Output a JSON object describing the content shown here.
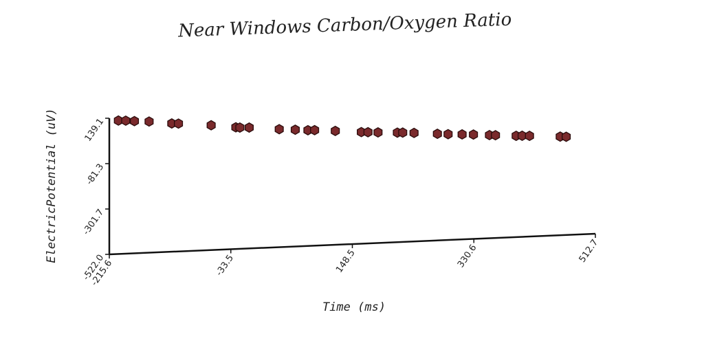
{
  "chart_data": {
    "type": "scatter",
    "title": "Near Windows Carbon/Oxygen Ratio",
    "xlabel": "Time (ms)",
    "ylabel": "ElectricPotential (uV)",
    "xlim": [
      -215.6,
      512.7
    ],
    "ylim": [
      -522.0,
      139.1
    ],
    "xticks": [
      "-215.6",
      "-33.5",
      "148.5",
      "330.6",
      "512.7"
    ],
    "yticks": [
      "-522.0",
      "-301.7",
      "-81.3",
      "139.1"
    ],
    "marker_color": "#7a2a2c",
    "grid": false,
    "points": [
      [
        -202.0,
        126.0
      ],
      [
        -191.0,
        124.0
      ],
      [
        -178.0,
        120.0
      ],
      [
        -156.0,
        115.0
      ],
      [
        -122.0,
        101.0
      ],
      [
        -112.0,
        99.0
      ],
      [
        -63.0,
        84.0
      ],
      [
        -26.0,
        69.0
      ],
      [
        -20.0,
        67.0
      ],
      [
        -6.0,
        65.0
      ],
      [
        39.0,
        51.0
      ],
      [
        63.0,
        45.0
      ],
      [
        82.0,
        40.0
      ],
      [
        92.0,
        39.0
      ],
      [
        123.0,
        31.0
      ],
      [
        162.0,
        20.0
      ],
      [
        172.0,
        18.0
      ],
      [
        187.0,
        15.0
      ],
      [
        216.0,
        10.0
      ],
      [
        224.0,
        9.0
      ],
      [
        241.0,
        5.0
      ],
      [
        276.0,
        -4.0
      ],
      [
        292.0,
        -8.0
      ],
      [
        313.0,
        -12.0
      ],
      [
        330.0,
        -15.0
      ],
      [
        354.0,
        -21.0
      ],
      [
        363.0,
        -23.0
      ],
      [
        394.0,
        -30.0
      ],
      [
        403.0,
        -31.0
      ],
      [
        414.0,
        -33.0
      ],
      [
        460.0,
        -43.0
      ],
      [
        469.0,
        -45.0
      ]
    ]
  }
}
